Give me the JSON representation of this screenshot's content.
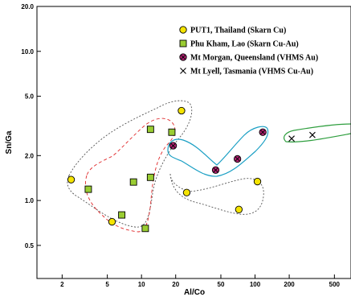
{
  "chart_data": {
    "type": "scatter",
    "title": "",
    "xlabel": "Al/Co",
    "ylabel": "Sn/Ga",
    "x_scale": "log",
    "y_scale": "log",
    "xlim": [
      1.2,
      700
    ],
    "ylim": [
      0.3,
      20.0
    ],
    "x_ticks": [
      2,
      5,
      10,
      20,
      50,
      100,
      200,
      500
    ],
    "x_tick_labels": [
      "2",
      "5",
      "10",
      "20",
      "50",
      "100",
      "200",
      "500"
    ],
    "y_ticks": [
      0.5,
      1.0,
      2.0,
      5.0,
      10.0,
      20.0
    ],
    "y_tick_labels": [
      "0.5",
      "1.0",
      "2.0",
      "5.0",
      "10.0",
      "20.0"
    ],
    "grid": false,
    "legend_position": "top-right",
    "series": [
      {
        "name": "PUT1, Thailand (Skarn Cu)",
        "marker": "circle",
        "color": "#f5e400",
        "points": [
          [
            2.4,
            1.38
          ],
          [
            5.5,
            0.72
          ],
          [
            22.5,
            4.0
          ],
          [
            25,
            1.13
          ],
          [
            72,
            0.87
          ],
          [
            105,
            1.34
          ]
        ]
      },
      {
        "name": "Phu Kham, Lao (Skarn Cu-Au)",
        "marker": "square",
        "color": "#9acd32",
        "points": [
          [
            3.4,
            1.19
          ],
          [
            6.7,
            0.8
          ],
          [
            8.5,
            1.33
          ],
          [
            10.8,
            0.65
          ],
          [
            12,
            1.43
          ],
          [
            12,
            3.0
          ],
          [
            18.5,
            2.87
          ]
        ]
      },
      {
        "name": "Mt Morgan, Queensland (VHMS Au)",
        "marker": "circle-x",
        "color": "#b22272",
        "points": [
          [
            19,
            2.33
          ],
          [
            45,
            1.6
          ],
          [
            70,
            1.9
          ],
          [
            117,
            2.87
          ]
        ]
      },
      {
        "name": "Mt Lyell, Tasmania (VHMS Cu-Au)",
        "marker": "x",
        "color": "#000000",
        "points": [
          [
            210,
            2.6
          ],
          [
            320,
            2.75
          ]
        ]
      }
    ],
    "field_outlines": [
      {
        "style": "dotted",
        "color": "#555555"
      },
      {
        "style": "dashed",
        "color": "#e0282a"
      },
      {
        "style": "dotted",
        "color": "#555555"
      },
      {
        "style": "solid",
        "color": "#1a9fc4"
      },
      {
        "style": "solid",
        "color": "#2e9e3e"
      }
    ]
  }
}
